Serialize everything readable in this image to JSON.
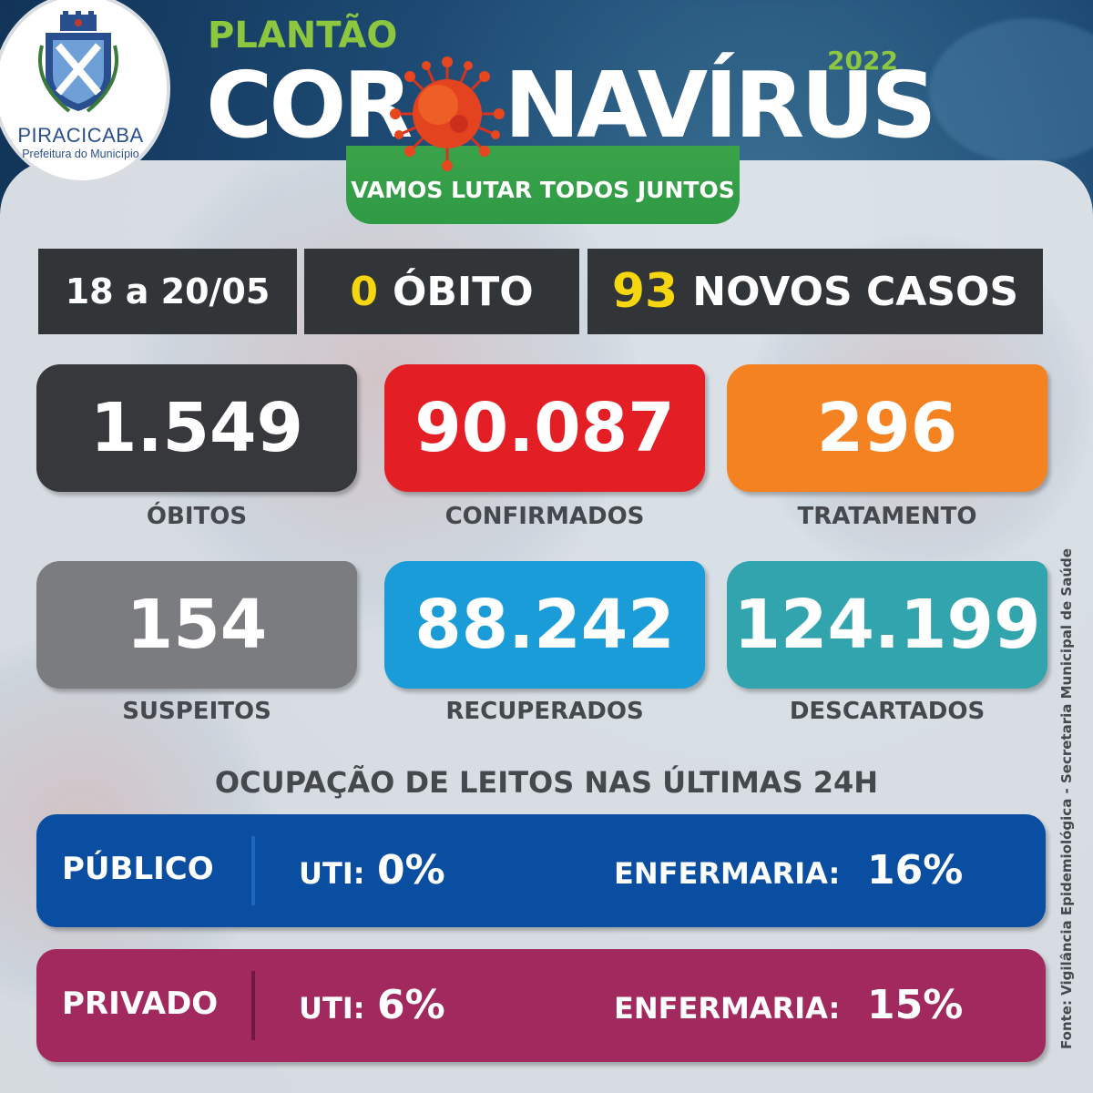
{
  "colors": {
    "plantao_green": "#8dc63f",
    "banner_green": "#2f9a45",
    "dark": "#323538",
    "highlight_yellow": "#f6d70f",
    "obitos": "#36383c",
    "confirmados": "#e41e25",
    "tratamento": "#f58220",
    "suspeitos": "#7b7c7f",
    "recuperados": "#1a9cd8",
    "descartados": "#31a4ad",
    "publico": "#0a4ea2",
    "privado": "#a1295e"
  },
  "logo": {
    "city": "PIRACICABA",
    "subtitle": "Prefeitura do Município"
  },
  "header": {
    "plantao": "PLANTÃO",
    "title_left": "COR",
    "title_right": "NAVÍRUS",
    "year": "2022",
    "banner": "VAMOS LUTAR TODOS JUNTOS"
  },
  "summary": {
    "period": "18 a 20/05",
    "deaths_value": "0",
    "deaths_label": "ÓBITO",
    "new_cases_value": "93",
    "new_cases_label": "NOVOS CASOS"
  },
  "stats": {
    "obitos": {
      "value": "1.549",
      "label": "ÓBITOS"
    },
    "confirmados": {
      "value": "90.087",
      "label": "CONFIRMADOS"
    },
    "tratamento": {
      "value": "296",
      "label": "TRATAMENTO"
    },
    "suspeitos": {
      "value": "154",
      "label": "SUSPEITOS"
    },
    "recuperados": {
      "value": "88.242",
      "label": "RECUPERADOS"
    },
    "descartados": {
      "value": "124.199",
      "label": "DESCARTADOS"
    }
  },
  "occupancy": {
    "title": "OCUPAÇÃO DE LEITOS NAS ÚLTIMAS 24H",
    "publico": {
      "label": "PÚBLICO",
      "uti_label": "UTI:",
      "uti_value": "0%",
      "enf_label": "ENFERMARIA:",
      "enf_value": "16%"
    },
    "privado": {
      "label": "PRIVADO",
      "uti_label": "UTI:",
      "uti_value": "6%",
      "enf_label": "ENFERMARIA:",
      "enf_value": "15%"
    }
  },
  "source": "Fonte: Vigilância Epidemiológica - Secretaria Municipal de Saúde"
}
